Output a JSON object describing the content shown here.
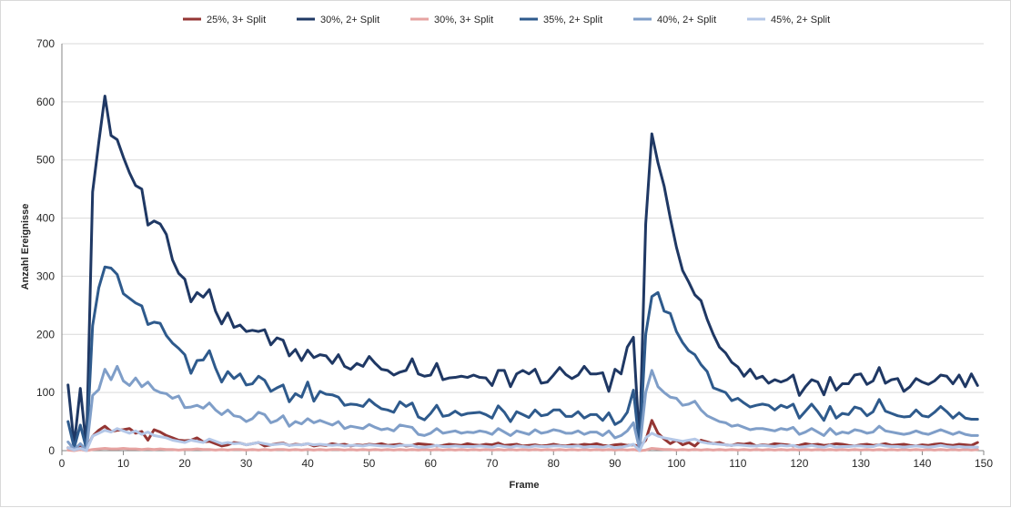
{
  "chart_data": {
    "type": "line",
    "xlabel": "Frame",
    "ylabel": "Anzahl Ereignisse",
    "xlim": [
      0,
      150
    ],
    "ylim": [
      0,
      700
    ],
    "xticks": [
      0,
      10,
      20,
      30,
      40,
      50,
      60,
      70,
      80,
      90,
      100,
      110,
      120,
      130,
      140,
      150
    ],
    "yticks": [
      0,
      100,
      200,
      300,
      400,
      500,
      600,
      700
    ],
    "grid": "horizontal",
    "legend_position": "top",
    "x": [
      1,
      2,
      3,
      4,
      5,
      6,
      7,
      8,
      9,
      10,
      11,
      12,
      13,
      14,
      15,
      16,
      17,
      18,
      19,
      20,
      21,
      22,
      23,
      24,
      25,
      26,
      27,
      28,
      29,
      30,
      31,
      32,
      33,
      34,
      35,
      36,
      37,
      38,
      39,
      40,
      41,
      42,
      43,
      44,
      45,
      46,
      47,
      48,
      49,
      50,
      51,
      52,
      53,
      54,
      55,
      56,
      57,
      58,
      59,
      60,
      61,
      62,
      63,
      64,
      65,
      66,
      67,
      68,
      69,
      70,
      71,
      72,
      73,
      74,
      75,
      76,
      77,
      78,
      79,
      80,
      81,
      82,
      83,
      84,
      85,
      86,
      87,
      88,
      89,
      90,
      91,
      92,
      93,
      94,
      95,
      96,
      97,
      98,
      99,
      100,
      101,
      102,
      103,
      104,
      105,
      106,
      107,
      108,
      109,
      110,
      111,
      112,
      113,
      114,
      115,
      116,
      117,
      118,
      119,
      120,
      121,
      122,
      123,
      124,
      125,
      126,
      127,
      128,
      129,
      130,
      131,
      132,
      133,
      134,
      135,
      136,
      137,
      138,
      139,
      140,
      141,
      142,
      143,
      144,
      145,
      146,
      147,
      148,
      149
    ],
    "series": [
      {
        "name": "25%, 3+ Split",
        "color": "#943634",
        "values": [
          5,
          2,
          8,
          3,
          25,
          35,
          42,
          33,
          35,
          36,
          38,
          30,
          33,
          18,
          36,
          32,
          26,
          22,
          18,
          17,
          18,
          22,
          15,
          16,
          12,
          8,
          10,
          14,
          13,
          10,
          12,
          14,
          8,
          10,
          12,
          13,
          9,
          11,
          10,
          12,
          8,
          10,
          9,
          12,
          10,
          11,
          8,
          10,
          9,
          11,
          10,
          12,
          9,
          10,
          11,
          8,
          9,
          12,
          11,
          10,
          8,
          9,
          11,
          10,
          9,
          12,
          10,
          9,
          11,
          10,
          13,
          9,
          10,
          11,
          8,
          9,
          10,
          8,
          9,
          11,
          9,
          8,
          10,
          9,
          11,
          10,
          12,
          9,
          8,
          10,
          11,
          9,
          10,
          7,
          18,
          52,
          30,
          20,
          12,
          18,
          10,
          14,
          8,
          18,
          15,
          12,
          14,
          10,
          9,
          12,
          11,
          13,
          8,
          10,
          9,
          12,
          11,
          10,
          8,
          9,
          12,
          10,
          11,
          9,
          10,
          12,
          11,
          9,
          8,
          10,
          11,
          9,
          10,
          12,
          9,
          10,
          11,
          9,
          8,
          10,
          9,
          11,
          12,
          10,
          9,
          11,
          10,
          9,
          14
        ]
      },
      {
        "name": "30%, 2+ Split",
        "color": "#1f3864",
        "values": [
          113,
          10,
          107,
          5,
          445,
          530,
          610,
          542,
          535,
          505,
          478,
          456,
          450,
          388,
          395,
          390,
          372,
          328,
          305,
          295,
          256,
          272,
          264,
          277,
          240,
          218,
          237,
          212,
          216,
          205,
          207,
          205,
          208,
          182,
          194,
          190,
          163,
          174,
          155,
          173,
          160,
          165,
          163,
          150,
          165,
          145,
          140,
          150,
          145,
          162,
          150,
          140,
          138,
          130,
          135,
          138,
          158,
          132,
          128,
          130,
          150,
          122,
          125,
          126,
          128,
          126,
          130,
          126,
          125,
          112,
          138,
          138,
          110,
          132,
          138,
          132,
          140,
          116,
          118,
          130,
          143,
          131,
          124,
          130,
          145,
          132,
          132,
          134,
          102,
          140,
          132,
          178,
          195,
          10,
          390,
          545,
          495,
          455,
          400,
          350,
          310,
          290,
          268,
          258,
          226,
          200,
          178,
          168,
          152,
          144,
          128,
          140,
          124,
          128,
          116,
          122,
          118,
          122,
          130,
          95,
          110,
          122,
          118,
          96,
          126,
          104,
          115,
          115,
          130,
          132,
          114,
          120,
          143,
          116,
          122,
          124,
          102,
          110,
          124,
          118,
          114,
          120,
          130,
          128,
          115,
          130,
          110,
          132,
          112
        ]
      },
      {
        "name": "30%, 3+ Split",
        "color": "#e6a3a1",
        "values": [
          1,
          0,
          2,
          0,
          2,
          3,
          4,
          3,
          3,
          4,
          3,
          3,
          2,
          3,
          2,
          3,
          2,
          2,
          1,
          2,
          2,
          3,
          2,
          2,
          1,
          2,
          1,
          2,
          2,
          1,
          2,
          1,
          2,
          1,
          2,
          2,
          1,
          2,
          1,
          2,
          1,
          2,
          1,
          2,
          2,
          1,
          2,
          1,
          2,
          1,
          2,
          1,
          2,
          1,
          2,
          1,
          2,
          1,
          2,
          1,
          2,
          1,
          2,
          1,
          2,
          1,
          2,
          1,
          2,
          1,
          2,
          1,
          2,
          1,
          2,
          1,
          2,
          1,
          2,
          1,
          2,
          1,
          2,
          1,
          2,
          1,
          2,
          1,
          2,
          1,
          2,
          1,
          2,
          0,
          1,
          4,
          3,
          2,
          2,
          1,
          2,
          1,
          2,
          1,
          2,
          1,
          2,
          1,
          2,
          1,
          2,
          1,
          2,
          1,
          2,
          1,
          2,
          1,
          2,
          1,
          2,
          1,
          2,
          1,
          2,
          1,
          2,
          1,
          2,
          1,
          2,
          1,
          2,
          1,
          2,
          1,
          2,
          1,
          2,
          1,
          2,
          1,
          2,
          1,
          2,
          1,
          2,
          1,
          2
        ]
      },
      {
        "name": "35%, 2+ Split",
        "color": "#2e5a8c",
        "values": [
          50,
          5,
          44,
          3,
          215,
          280,
          316,
          314,
          303,
          270,
          262,
          254,
          249,
          217,
          221,
          219,
          198,
          185,
          176,
          165,
          133,
          155,
          156,
          172,
          142,
          118,
          136,
          124,
          132,
          113,
          115,
          128,
          121,
          102,
          108,
          113,
          84,
          98,
          92,
          118,
          85,
          102,
          97,
          96,
          92,
          78,
          80,
          79,
          76,
          88,
          79,
          72,
          70,
          66,
          84,
          76,
          82,
          58,
          53,
          64,
          78,
          59,
          61,
          68,
          61,
          64,
          65,
          66,
          62,
          56,
          77,
          66,
          50,
          67,
          62,
          57,
          70,
          60,
          62,
          70,
          70,
          59,
          59,
          67,
          56,
          62,
          62,
          52,
          65,
          45,
          51,
          66,
          104,
          5,
          200,
          265,
          272,
          240,
          236,
          205,
          186,
          172,
          165,
          148,
          136,
          108,
          104,
          100,
          86,
          90,
          82,
          75,
          78,
          80,
          78,
          70,
          78,
          74,
          80,
          56,
          68,
          80,
          67,
          52,
          76,
          56,
          64,
          62,
          75,
          72,
          60,
          67,
          88,
          68,
          64,
          60,
          58,
          59,
          70,
          60,
          58,
          66,
          76,
          67,
          56,
          65,
          56,
          54,
          54
        ]
      },
      {
        "name": "40%, 2+ Split",
        "color": "#7f9ec8",
        "values": [
          15,
          2,
          12,
          1,
          95,
          105,
          140,
          122,
          145,
          120,
          112,
          125,
          110,
          118,
          105,
          100,
          98,
          90,
          94,
          74,
          75,
          78,
          73,
          82,
          70,
          62,
          70,
          60,
          58,
          50,
          55,
          66,
          62,
          48,
          52,
          60,
          42,
          50,
          46,
          55,
          48,
          52,
          48,
          44,
          50,
          38,
          42,
          40,
          38,
          45,
          40,
          36,
          38,
          34,
          44,
          42,
          40,
          28,
          26,
          30,
          38,
          30,
          32,
          34,
          30,
          32,
          31,
          34,
          32,
          28,
          38,
          32,
          26,
          34,
          31,
          28,
          36,
          30,
          32,
          36,
          34,
          30,
          30,
          34,
          28,
          32,
          32,
          26,
          34,
          22,
          26,
          34,
          48,
          2,
          100,
          138,
          110,
          100,
          92,
          90,
          78,
          80,
          85,
          70,
          60,
          55,
          50,
          48,
          42,
          44,
          40,
          36,
          38,
          38,
          36,
          34,
          38,
          36,
          40,
          28,
          32,
          38,
          32,
          26,
          38,
          28,
          32,
          30,
          36,
          34,
          30,
          32,
          42,
          34,
          32,
          30,
          28,
          30,
          34,
          30,
          28,
          32,
          36,
          32,
          28,
          32,
          28,
          26,
          26
        ]
      },
      {
        "name": "45%, 2+ Split",
        "color": "#b4c7e7",
        "values": [
          5,
          1,
          4,
          0,
          25,
          30,
          35,
          32,
          38,
          34,
          30,
          34,
          28,
          32,
          26,
          24,
          22,
          18,
          16,
          14,
          18,
          16,
          14,
          20,
          16,
          12,
          14,
          12,
          13,
          10,
          12,
          14,
          12,
          10,
          11,
          12,
          9,
          10,
          10,
          12,
          10,
          11,
          10,
          9,
          10,
          8,
          9,
          9,
          8,
          10,
          9,
          8,
          8,
          7,
          9,
          9,
          9,
          6,
          6,
          7,
          9,
          7,
          7,
          8,
          7,
          7,
          7,
          8,
          7,
          6,
          9,
          7,
          6,
          8,
          7,
          6,
          8,
          7,
          7,
          8,
          8,
          7,
          7,
          8,
          6,
          7,
          7,
          6,
          8,
          5,
          6,
          8,
          11,
          0,
          22,
          30,
          25,
          22,
          20,
          18,
          16,
          18,
          20,
          15,
          13,
          12,
          11,
          10,
          9,
          10,
          9,
          8,
          8,
          9,
          8,
          7,
          9,
          8,
          9,
          6,
          7,
          9,
          7,
          6,
          9,
          6,
          7,
          7,
          8,
          8,
          7,
          7,
          10,
          8,
          7,
          7,
          6,
          7,
          8,
          7,
          6,
          7,
          9,
          7,
          6,
          7,
          6,
          6,
          6
        ]
      }
    ]
  }
}
